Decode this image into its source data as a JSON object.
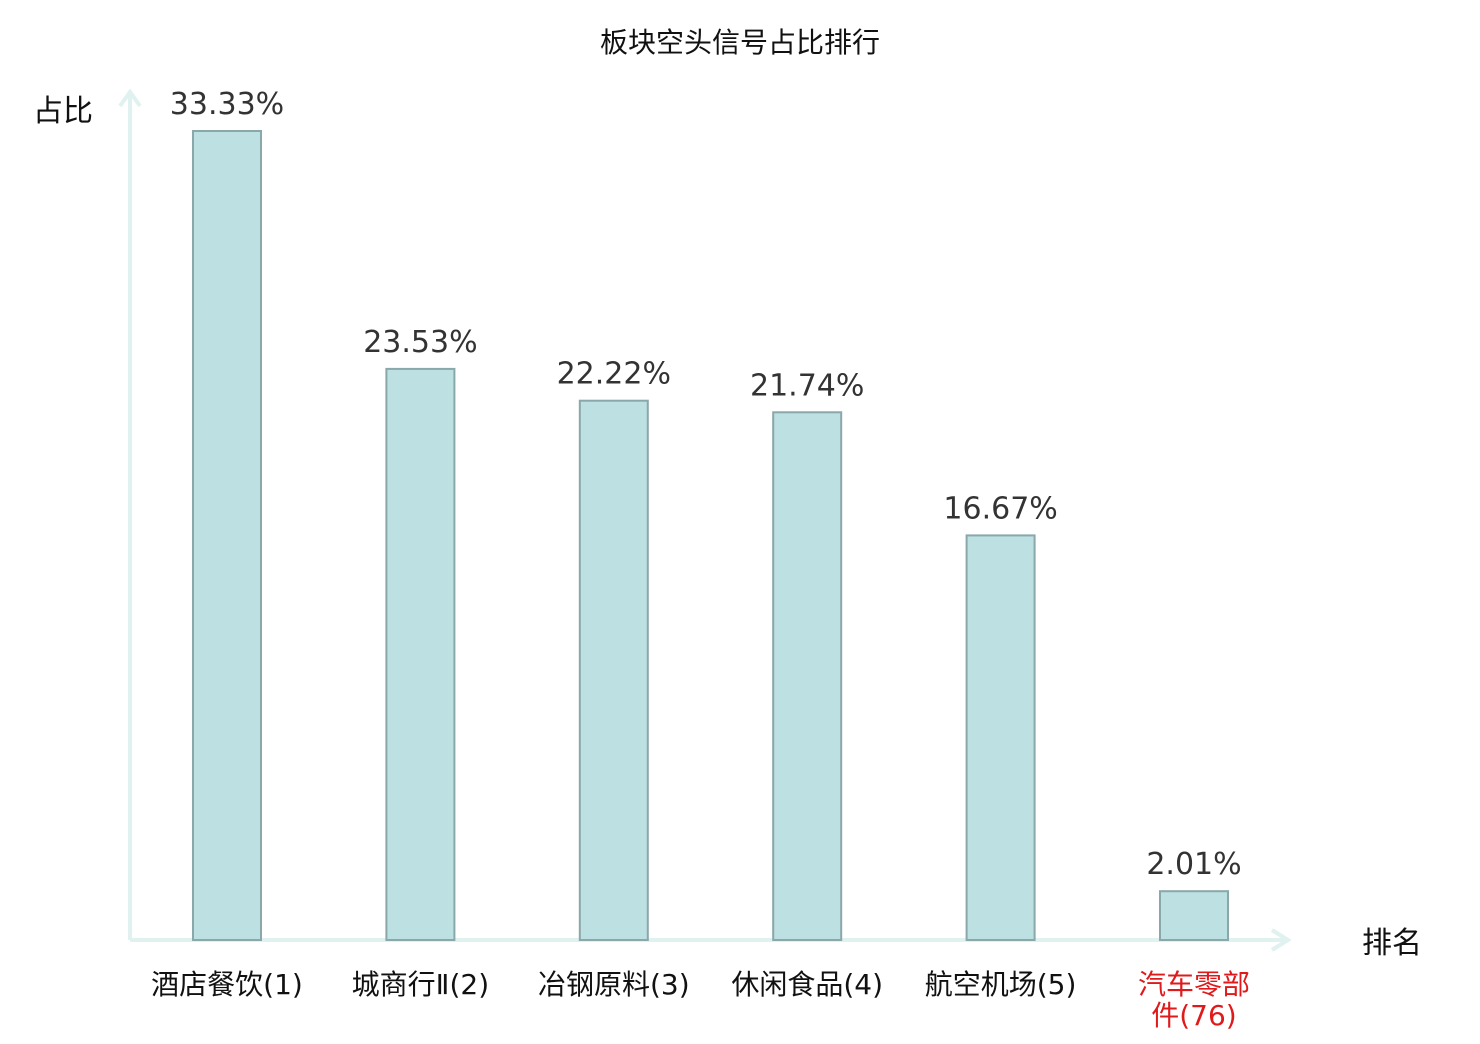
{
  "chart_data": {
    "type": "bar",
    "title": "板块空头信号占比排行",
    "ylabel": "占比",
    "xlabel": "排名",
    "categories": [
      "酒店餐饮(1)",
      "城商行Ⅱ(2)",
      "冶钢原料(3)",
      "休闲食品(4)",
      "航空机场(5)",
      "汽车零部件(76)"
    ],
    "category_lines": [
      [
        "酒店餐饮(1)"
      ],
      [
        "城商行Ⅱ(2)"
      ],
      [
        "冶钢原料(3)"
      ],
      [
        "休闲食品(4)"
      ],
      [
        "航空机场(5)"
      ],
      [
        "汽车零部",
        "件(76)"
      ]
    ],
    "values": [
      33.33,
      23.53,
      22.22,
      21.74,
      16.67,
      2.01
    ],
    "value_labels": [
      "33.33%",
      "23.53%",
      "22.22%",
      "21.74%",
      "16.67%",
      "2.01%"
    ],
    "highlight_index": 5,
    "ylim": [
      0,
      33.33
    ],
    "grid": false,
    "colors": {
      "bar_fill": "#bde0e2",
      "bar_stroke": "#8aa7a9",
      "axis": "#dff2ef",
      "text": "#111111",
      "value_text": "#333333",
      "highlight_text": "#e0191b"
    }
  }
}
